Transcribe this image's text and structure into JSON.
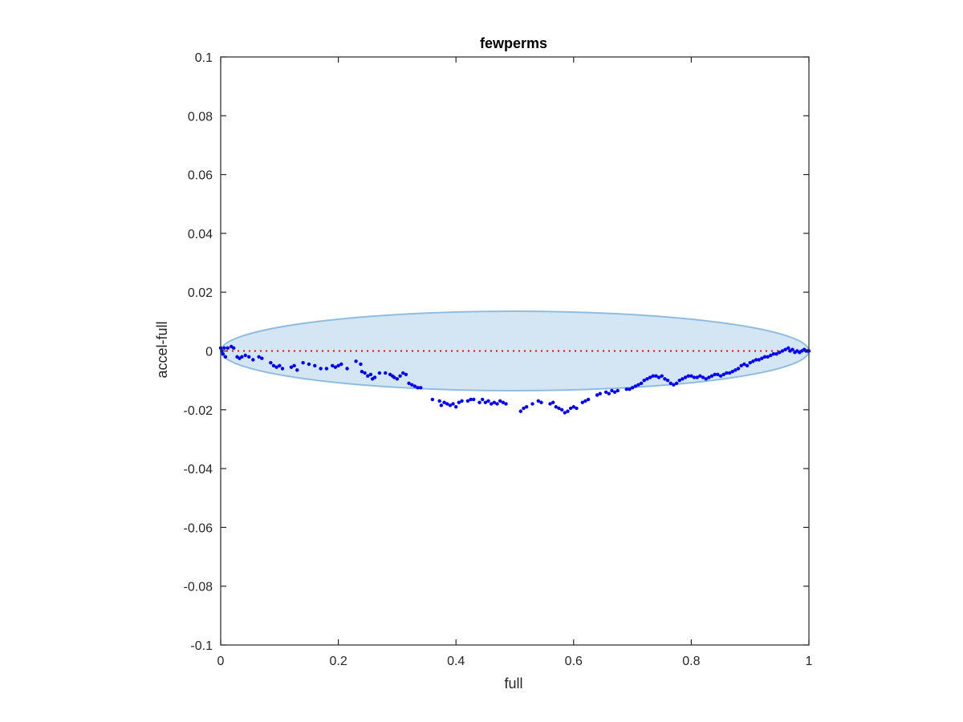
{
  "chart_data": {
    "type": "scatter",
    "title": "fewperms",
    "xlabel": "full",
    "ylabel": "accel-full",
    "xlim": [
      0,
      1
    ],
    "ylim": [
      -0.1,
      0.1
    ],
    "xticks": [
      0,
      0.2,
      0.4,
      0.6,
      0.8,
      1
    ],
    "xtick_labels": [
      "0",
      "0.2",
      "0.4",
      "0.6",
      "0.8",
      "1"
    ],
    "yticks": [
      -0.1,
      -0.08,
      -0.06,
      -0.04,
      -0.02,
      0,
      0.02,
      0.04,
      0.06,
      0.08,
      0.1
    ],
    "ytick_labels": [
      "-0.1",
      "-0.08",
      "-0.06",
      "-0.04",
      "-0.02",
      "0",
      "0.02",
      "0.04",
      "0.06",
      "0.08",
      "0.1"
    ],
    "grid": false,
    "colors": {
      "points": "#0000ff",
      "reference_line": "#ff0000",
      "ellipse_fill": "#d4e6f4",
      "ellipse_edge": "#8fbde0",
      "axes": "#262626"
    },
    "reference_line": {
      "y": 0,
      "style": "dotted"
    },
    "ellipse": {
      "center": [
        0.5,
        0
      ],
      "half_width": 0.5,
      "half_height": 0.0135
    },
    "points": [
      [
        0.0,
        0.001
      ],
      [
        0.002,
        0.0
      ],
      [
        0.004,
        -0.001
      ],
      [
        0.006,
        0.001
      ],
      [
        0.008,
        -0.002
      ],
      [
        0.012,
        0.001
      ],
      [
        0.018,
        0.0015
      ],
      [
        0.022,
        0.001
      ],
      [
        0.028,
        -0.002
      ],
      [
        0.032,
        -0.0025
      ],
      [
        0.036,
        -0.002
      ],
      [
        0.042,
        -0.0015
      ],
      [
        0.048,
        -0.002
      ],
      [
        0.055,
        -0.003
      ],
      [
        0.065,
        -0.002
      ],
      [
        0.07,
        -0.0025
      ],
      [
        0.085,
        -0.004
      ],
      [
        0.09,
        -0.005
      ],
      [
        0.095,
        -0.0055
      ],
      [
        0.1,
        -0.005
      ],
      [
        0.105,
        -0.006
      ],
      [
        0.12,
        -0.0055
      ],
      [
        0.125,
        -0.005
      ],
      [
        0.13,
        -0.0065
      ],
      [
        0.14,
        -0.004
      ],
      [
        0.15,
        -0.0045
      ],
      [
        0.16,
        -0.005
      ],
      [
        0.17,
        -0.006
      ],
      [
        0.18,
        -0.006
      ],
      [
        0.19,
        -0.005
      ],
      [
        0.195,
        -0.0055
      ],
      [
        0.2,
        -0.005
      ],
      [
        0.205,
        -0.0045
      ],
      [
        0.215,
        -0.006
      ],
      [
        0.23,
        -0.0035
      ],
      [
        0.238,
        -0.0045
      ],
      [
        0.24,
        -0.007
      ],
      [
        0.245,
        -0.0075
      ],
      [
        0.25,
        -0.0085
      ],
      [
        0.255,
        -0.008
      ],
      [
        0.258,
        -0.0095
      ],
      [
        0.262,
        -0.009
      ],
      [
        0.27,
        -0.0075
      ],
      [
        0.28,
        -0.0075
      ],
      [
        0.288,
        -0.008
      ],
      [
        0.292,
        -0.0085
      ],
      [
        0.295,
        -0.009
      ],
      [
        0.3,
        -0.0095
      ],
      [
        0.305,
        -0.0085
      ],
      [
        0.31,
        -0.0075
      ],
      [
        0.315,
        -0.008
      ],
      [
        0.32,
        -0.011
      ],
      [
        0.325,
        -0.0115
      ],
      [
        0.33,
        -0.012
      ],
      [
        0.335,
        -0.0125
      ],
      [
        0.34,
        -0.0125
      ],
      [
        0.36,
        -0.0165
      ],
      [
        0.372,
        -0.017
      ],
      [
        0.375,
        -0.0185
      ],
      [
        0.38,
        -0.0175
      ],
      [
        0.385,
        -0.018
      ],
      [
        0.39,
        -0.0185
      ],
      [
        0.395,
        -0.018
      ],
      [
        0.4,
        -0.019
      ],
      [
        0.405,
        -0.0175
      ],
      [
        0.41,
        -0.017
      ],
      [
        0.42,
        -0.017
      ],
      [
        0.425,
        -0.0165
      ],
      [
        0.43,
        -0.0165
      ],
      [
        0.44,
        -0.0175
      ],
      [
        0.445,
        -0.0165
      ],
      [
        0.45,
        -0.0175
      ],
      [
        0.455,
        -0.017
      ],
      [
        0.46,
        -0.018
      ],
      [
        0.465,
        -0.0175
      ],
      [
        0.47,
        -0.018
      ],
      [
        0.475,
        -0.017
      ],
      [
        0.48,
        -0.0175
      ],
      [
        0.485,
        -0.018
      ],
      [
        0.51,
        -0.0205
      ],
      [
        0.515,
        -0.0195
      ],
      [
        0.52,
        -0.019
      ],
      [
        0.53,
        -0.018
      ],
      [
        0.54,
        -0.017
      ],
      [
        0.545,
        -0.0175
      ],
      [
        0.56,
        -0.018
      ],
      [
        0.565,
        -0.0175
      ],
      [
        0.57,
        -0.019
      ],
      [
        0.575,
        -0.0195
      ],
      [
        0.58,
        -0.02
      ],
      [
        0.585,
        -0.021
      ],
      [
        0.59,
        -0.0205
      ],
      [
        0.595,
        -0.0195
      ],
      [
        0.6,
        -0.019
      ],
      [
        0.605,
        -0.0195
      ],
      [
        0.615,
        -0.0175
      ],
      [
        0.62,
        -0.017
      ],
      [
        0.625,
        -0.0165
      ],
      [
        0.64,
        -0.015
      ],
      [
        0.645,
        -0.0145
      ],
      [
        0.655,
        -0.014
      ],
      [
        0.66,
        -0.0145
      ],
      [
        0.665,
        -0.0135
      ],
      [
        0.67,
        -0.014
      ],
      [
        0.675,
        -0.0135
      ],
      [
        0.69,
        -0.013
      ],
      [
        0.695,
        -0.013
      ],
      [
        0.7,
        -0.0125
      ],
      [
        0.705,
        -0.012
      ],
      [
        0.71,
        -0.0115
      ],
      [
        0.715,
        -0.011
      ],
      [
        0.72,
        -0.01
      ],
      [
        0.725,
        -0.0095
      ],
      [
        0.73,
        -0.009
      ],
      [
        0.735,
        -0.0085
      ],
      [
        0.74,
        -0.0085
      ],
      [
        0.745,
        -0.009
      ],
      [
        0.75,
        -0.0085
      ],
      [
        0.755,
        -0.0095
      ],
      [
        0.76,
        -0.01
      ],
      [
        0.765,
        -0.011
      ],
      [
        0.77,
        -0.0115
      ],
      [
        0.775,
        -0.011
      ],
      [
        0.78,
        -0.01
      ],
      [
        0.785,
        -0.0095
      ],
      [
        0.79,
        -0.009
      ],
      [
        0.795,
        -0.0085
      ],
      [
        0.8,
        -0.0085
      ],
      [
        0.805,
        -0.009
      ],
      [
        0.81,
        -0.009
      ],
      [
        0.815,
        -0.0085
      ],
      [
        0.82,
        -0.009
      ],
      [
        0.825,
        -0.0095
      ],
      [
        0.83,
        -0.009
      ],
      [
        0.835,
        -0.0085
      ],
      [
        0.84,
        -0.008
      ],
      [
        0.845,
        -0.008
      ],
      [
        0.85,
        -0.0085
      ],
      [
        0.855,
        -0.008
      ],
      [
        0.86,
        -0.0075
      ],
      [
        0.865,
        -0.0075
      ],
      [
        0.87,
        -0.007
      ],
      [
        0.875,
        -0.0065
      ],
      [
        0.88,
        -0.006
      ],
      [
        0.885,
        -0.005
      ],
      [
        0.89,
        -0.0045
      ],
      [
        0.895,
        -0.005
      ],
      [
        0.9,
        -0.004
      ],
      [
        0.905,
        -0.0035
      ],
      [
        0.91,
        -0.003
      ],
      [
        0.915,
        -0.003
      ],
      [
        0.92,
        -0.0025
      ],
      [
        0.925,
        -0.002
      ],
      [
        0.93,
        -0.002
      ],
      [
        0.935,
        -0.0015
      ],
      [
        0.94,
        -0.001
      ],
      [
        0.945,
        -0.001
      ],
      [
        0.95,
        -0.0005
      ],
      [
        0.955,
        0.0
      ],
      [
        0.96,
        0.0005
      ],
      [
        0.965,
        0.001
      ],
      [
        0.968,
        0.0
      ],
      [
        0.972,
        0.0005
      ],
      [
        0.976,
        -0.0005
      ],
      [
        0.98,
        0.0
      ],
      [
        0.984,
        -0.0005
      ],
      [
        0.988,
        0.0
      ],
      [
        0.992,
        0.0005
      ],
      [
        0.995,
        0.0
      ],
      [
        0.998,
        0.0
      ],
      [
        1.0,
        0.0
      ]
    ]
  }
}
